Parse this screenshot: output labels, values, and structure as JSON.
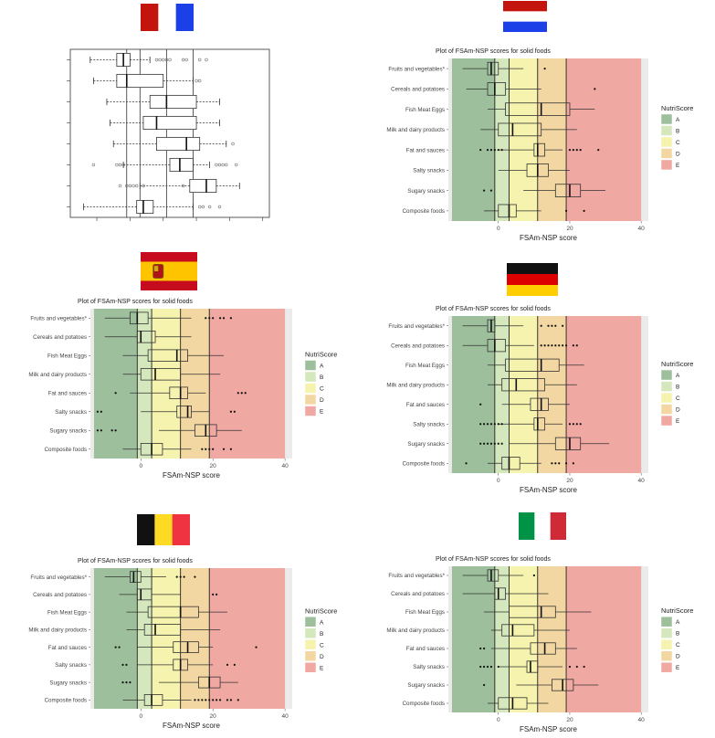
{
  "categories": [
    "Fruits and vegetables*",
    "Cereals and potatoes",
    "Fish Meat Eggs",
    "Milk and dairy products",
    "Fat and sauces",
    "Salty snacks",
    "Sugary snacks",
    "Composite foods"
  ],
  "legend": {
    "title": "NutriScore",
    "grades": [
      "A",
      "B",
      "C",
      "D",
      "E"
    ],
    "colors": {
      "A": "#9dbf9b",
      "B": "#d5e7bc",
      "C": "#f5f3ad",
      "D": "#f3d7a2",
      "E": "#f0a8a3"
    }
  },
  "grade_thresholds": [
    -1,
    3,
    11,
    19
  ],
  "flags": {
    "france": [
      "#c4140e",
      "#ffffff",
      "#1c40e8"
    ],
    "netherlands": [
      "#c4140e",
      "#ffffff",
      "#1c40e8"
    ],
    "spain": [
      "#c60b1e",
      "#ffc400",
      "#c60b1e"
    ],
    "germany": [
      "#111111",
      "#dd0000",
      "#ffce00"
    ],
    "belgium": [
      "#111111",
      "#fdda24",
      "#ef3340"
    ],
    "italy": [
      "#009246",
      "#ffffff",
      "#ce2b37"
    ]
  },
  "panels": {
    "france": {
      "country": "France"
    },
    "netherlands": {
      "country": "Netherlands"
    },
    "spain": {
      "country": "Spain"
    },
    "germany": {
      "country": "Germany"
    },
    "belgium": {
      "country": "Belgium"
    },
    "italy": {
      "country": "Italy"
    }
  },
  "chart_data": [
    {
      "country": "France",
      "type": "boxplot",
      "title": "",
      "xlabel": "",
      "ylabel": "",
      "xlim": [
        -18,
        42
      ],
      "vlines": [
        -1,
        3,
        11,
        19
      ],
      "series": [
        {
          "min": -12,
          "q1": -4,
          "median": -2,
          "q3": 0,
          "max": 6,
          "outliers": [
            8,
            9,
            10,
            11,
            12,
            16,
            17,
            21,
            23
          ]
        },
        {
          "min": -11,
          "q1": -4,
          "median": -1,
          "q3": 10,
          "max": 19,
          "outliers": [
            20,
            21
          ]
        },
        {
          "min": -7,
          "q1": 6,
          "median": 11,
          "q3": 20,
          "max": 27,
          "outliers": []
        },
        {
          "min": -6,
          "q1": 4,
          "median": 8,
          "q3": 20,
          "max": 27,
          "outliers": []
        },
        {
          "min": -5,
          "q1": 8,
          "median": 17,
          "q3": 21,
          "max": 29,
          "outliers": [
            31
          ]
        },
        {
          "min": -2,
          "q1": 12,
          "median": 15,
          "q3": 19,
          "max": 24,
          "outliers": [
            -11,
            -4,
            -3,
            -2,
            26,
            27,
            28,
            29,
            32
          ]
        },
        {
          "min": 3,
          "q1": 18,
          "median": 23,
          "q3": 26,
          "max": 33,
          "outliers": [
            -3,
            -1,
            0,
            1,
            2,
            4,
            16
          ]
        },
        {
          "min": -14,
          "q1": 2,
          "median": 4,
          "q3": 7,
          "max": 19,
          "outliers": [
            21,
            22,
            24,
            27
          ]
        }
      ]
    },
    {
      "country": "Netherlands",
      "type": "boxplot",
      "title": "Plot of FSAm-NSP scores for solid foods",
      "xlabel": "FSAm-NSP score",
      "ylabel": "",
      "xlim": [
        -14,
        42
      ],
      "xticks": [
        0,
        20,
        40
      ],
      "series": [
        {
          "min": -10,
          "q1": -3,
          "median": -2,
          "q3": 0,
          "max": 7,
          "outliers": [
            13
          ]
        },
        {
          "min": -9,
          "q1": -3,
          "median": -1,
          "q3": 2,
          "max": 12,
          "outliers": [
            27
          ]
        },
        {
          "min": -3,
          "q1": 2,
          "median": 12,
          "q3": 20,
          "max": 27,
          "outliers": []
        },
        {
          "min": -5,
          "q1": 0,
          "median": 4,
          "q3": 12,
          "max": 22,
          "outliers": []
        },
        {
          "min": 0,
          "q1": 10,
          "median": 11,
          "q3": 13,
          "max": 18,
          "outliers": [
            -5,
            -3,
            -2,
            -1,
            0,
            1,
            20,
            21,
            22,
            23,
            28
          ]
        },
        {
          "min": 0,
          "q1": 8,
          "median": 11,
          "q3": 14,
          "max": 20,
          "outliers": []
        },
        {
          "min": 7,
          "q1": 16,
          "median": 20,
          "q3": 23,
          "max": 30,
          "outliers": [
            -4,
            -2
          ]
        },
        {
          "min": -4,
          "q1": 0,
          "median": 3,
          "q3": 5,
          "max": 12,
          "outliers": [
            19,
            24
          ]
        }
      ]
    },
    {
      "country": "Spain",
      "type": "boxplot",
      "title": "Plot of FSAm-NSP scores for solid foods",
      "xlabel": "FSAm-NSP score",
      "ylabel": "",
      "xlim": [
        -14,
        42
      ],
      "xticks": [
        0,
        20,
        40
      ],
      "series": [
        {
          "min": -10,
          "q1": -3,
          "median": -1,
          "q3": 2,
          "max": 14,
          "outliers": [
            18,
            19,
            20,
            22,
            23,
            25
          ]
        },
        {
          "min": -10,
          "q1": -1,
          "median": 0,
          "q3": 4,
          "max": 14,
          "outliers": []
        },
        {
          "min": -5,
          "q1": 2,
          "median": 10,
          "q3": 13,
          "max": 23,
          "outliers": []
        },
        {
          "min": -5,
          "q1": 0,
          "median": 4,
          "q3": 11,
          "max": 22,
          "outliers": []
        },
        {
          "min": -3,
          "q1": 8,
          "median": 11,
          "q3": 13,
          "max": 18,
          "outliers": [
            -7,
            27,
            28,
            29
          ]
        },
        {
          "min": 0,
          "q1": 10,
          "median": 13,
          "q3": 14,
          "max": 19,
          "outliers": [
            -12,
            -11,
            25,
            26
          ]
        },
        {
          "min": 5,
          "q1": 15,
          "median": 18,
          "q3": 21,
          "max": 28,
          "outliers": [
            -12,
            -11,
            -8,
            -7
          ]
        },
        {
          "min": -5,
          "q1": 0,
          "median": 3,
          "q3": 6,
          "max": 14,
          "outliers": [
            17,
            18,
            19,
            20,
            23,
            25
          ]
        }
      ]
    },
    {
      "country": "Germany",
      "type": "boxplot",
      "title": "Plot of FSAm-NSP scores for solid foods",
      "xlabel": "FSAm-NSP score",
      "ylabel": "",
      "xlim": [
        -14,
        42
      ],
      "xticks": [
        0,
        20,
        40
      ],
      "series": [
        {
          "min": -10,
          "q1": -3,
          "median": -2,
          "q3": -1,
          "max": 7,
          "outliers": [
            12,
            14,
            15,
            16,
            18
          ]
        },
        {
          "min": -10,
          "q1": -3,
          "median": -1,
          "q3": 2,
          "max": 10,
          "outliers": [
            12,
            13,
            14,
            15,
            16,
            17,
            18,
            19,
            21,
            22
          ]
        },
        {
          "min": -3,
          "q1": 2,
          "median": 12,
          "q3": 17,
          "max": 24,
          "outliers": []
        },
        {
          "min": -3,
          "q1": 1,
          "median": 5,
          "q3": 13,
          "max": 22,
          "outliers": []
        },
        {
          "min": 1,
          "q1": 9,
          "median": 12,
          "q3": 14,
          "max": 20,
          "outliers": [
            -5
          ]
        },
        {
          "min": 0,
          "q1": 10,
          "median": 11,
          "q3": 13,
          "max": 18,
          "outliers": [
            -5,
            -4,
            -3,
            -2,
            -1,
            0,
            1,
            20,
            21,
            22,
            23
          ]
        },
        {
          "min": 3,
          "q1": 16,
          "median": 20,
          "q3": 23,
          "max": 31,
          "outliers": [
            -5,
            -4,
            -3,
            -2,
            -1,
            0,
            1
          ]
        },
        {
          "min": -3,
          "q1": 1,
          "median": 3,
          "q3": 6,
          "max": 12,
          "outliers": [
            -9,
            15,
            16,
            17,
            19,
            21
          ]
        }
      ]
    },
    {
      "country": "Belgium",
      "type": "boxplot",
      "title": "Plot of FSAm-NSP scores for solid foods",
      "xlabel": "FSAm-NSP score",
      "ylabel": "",
      "xlim": [
        -14,
        42
      ],
      "xticks": [
        0,
        20,
        40
      ],
      "series": [
        {
          "min": -10,
          "q1": -3,
          "median": -2,
          "q3": 0,
          "max": 7,
          "outliers": [
            10,
            11,
            12,
            15
          ]
        },
        {
          "min": -6,
          "q1": -1,
          "median": 0,
          "q3": 3,
          "max": 11,
          "outliers": [
            20,
            21
          ]
        },
        {
          "min": -4,
          "q1": 2,
          "median": 11,
          "q3": 16,
          "max": 24,
          "outliers": []
        },
        {
          "min": -4,
          "q1": 1,
          "median": 4,
          "q3": 11,
          "max": 22,
          "outliers": []
        },
        {
          "min": -1,
          "q1": 9,
          "median": 13,
          "q3": 16,
          "max": 20,
          "outliers": [
            -7,
            -6,
            32
          ]
        },
        {
          "min": -1,
          "q1": 9,
          "median": 11,
          "q3": 13,
          "max": 20,
          "outliers": [
            -5,
            -4,
            24,
            26
          ]
        },
        {
          "min": 5,
          "q1": 16,
          "median": 19,
          "q3": 22,
          "max": 27,
          "outliers": [
            -5,
            -4,
            -3
          ]
        },
        {
          "min": -5,
          "q1": 1,
          "median": 3,
          "q3": 6,
          "max": 14,
          "outliers": [
            15,
            16,
            17,
            18,
            19,
            20,
            21,
            22,
            24,
            25,
            27
          ]
        }
      ]
    },
    {
      "country": "Italy",
      "type": "boxplot",
      "title": "Plot of FSAm-NSP scores for solid foods",
      "xlabel": "FSAm-NSP score",
      "ylabel": "",
      "xlim": [
        -14,
        42
      ],
      "xticks": [
        0,
        20,
        40
      ],
      "series": [
        {
          "min": -10,
          "q1": -3,
          "median": -2,
          "q3": 0,
          "max": 7,
          "outliers": [
            10
          ]
        },
        {
          "min": -10,
          "q1": -1,
          "median": 0,
          "q3": 2,
          "max": 14,
          "outliers": []
        },
        {
          "min": -4,
          "q1": 3,
          "median": 12,
          "q3": 16,
          "max": 26,
          "outliers": []
        },
        {
          "min": -2,
          "q1": 1,
          "median": 4,
          "q3": 10,
          "max": 20,
          "outliers": []
        },
        {
          "min": -2,
          "q1": 9,
          "median": 13,
          "q3": 16,
          "max": 22,
          "outliers": [
            -5,
            -4
          ]
        },
        {
          "min": 0,
          "q1": 8,
          "median": 9,
          "q3": 11,
          "max": 18,
          "outliers": [
            -5,
            -4,
            -3,
            -2,
            0,
            20,
            22,
            24
          ]
        },
        {
          "min": 5,
          "q1": 15,
          "median": 18,
          "q3": 21,
          "max": 28,
          "outliers": [
            -4
          ]
        },
        {
          "min": -3,
          "q1": 0,
          "median": 4,
          "q3": 8,
          "max": 14,
          "outliers": []
        }
      ]
    }
  ]
}
